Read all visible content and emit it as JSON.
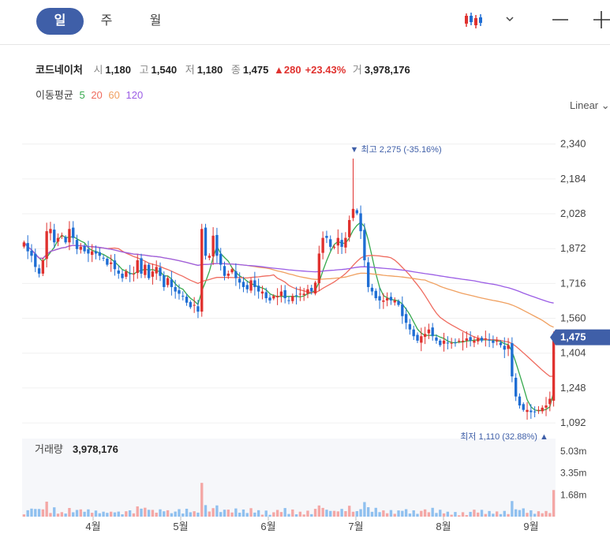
{
  "tabs": [
    {
      "label": "일",
      "active": true
    },
    {
      "label": "주",
      "active": false
    },
    {
      "label": "월",
      "active": false
    }
  ],
  "toolbar": {
    "chart_type_icon": "candlestick-icon",
    "dropdown_icon": "chevron-down-icon",
    "zoom_out_icon": "minus-icon",
    "zoom_in_icon": "plus-icon"
  },
  "stock": {
    "name": "코드네이처",
    "open_label": "시",
    "open": "1,180",
    "high_label": "고",
    "high": "1,540",
    "low_label": "저",
    "low": "1,180",
    "close_label": "종",
    "close": "1,475",
    "change": "280",
    "change_pct": "+23.43%",
    "volume_label": "거",
    "volume": "3,978,176"
  },
  "ma": {
    "label": "이동평균",
    "items": [
      {
        "period": "5",
        "color": "#36a94d"
      },
      {
        "period": "20",
        "color": "#ef6b5f"
      },
      {
        "period": "60",
        "color": "#f0a060"
      },
      {
        "period": "120",
        "color": "#9b5de5"
      }
    ]
  },
  "scale_label": "Linear",
  "colors": {
    "up": "#e0322f",
    "down": "#1f6ed4",
    "accent": "#3f5fa8",
    "vol_up": "#f4a7a5",
    "vol_down": "#8fc0ef"
  },
  "chart_data": [
    {
      "type": "candlestick",
      "y_ticks": [
        "2,340",
        "2,184",
        "2,028",
        "1,872",
        "1,716",
        "1,560",
        "1,404",
        "1,248",
        "1,092"
      ],
      "ylim": [
        1050,
        2420
      ],
      "x_ticks": [
        "4월",
        "5월",
        "6월",
        "7월",
        "8월",
        "9월"
      ],
      "current_price": "1,475",
      "high_marker": {
        "label": "최고",
        "value": "2,275",
        "pct": "(-35.16%)",
        "price": 2275
      },
      "low_marker": {
        "label": "최저",
        "value": "1,110",
        "pct": "(32.88%)",
        "price": 1110
      },
      "closes": [
        1900,
        1860,
        1840,
        1790,
        1760,
        1820,
        1950,
        1960,
        1900,
        1920,
        1930,
        1900,
        1960,
        1920,
        1870,
        1880,
        1860,
        1850,
        1860,
        1850,
        1840,
        1830,
        1800,
        1810,
        1780,
        1760,
        1740,
        1770,
        1760,
        1760,
        1820,
        1760,
        1800,
        1740,
        1770,
        1790,
        1750,
        1700,
        1740,
        1700,
        1680,
        1670,
        1660,
        1630,
        1610,
        1620,
        1590,
        1960,
        1840,
        1840,
        1930,
        1840,
        1800,
        1750,
        1760,
        1780,
        1740,
        1720,
        1700,
        1690,
        1730,
        1700,
        1680,
        1680,
        1650,
        1640,
        1660,
        1660,
        1680,
        1650,
        1640,
        1660,
        1660,
        1670,
        1670,
        1690,
        1680,
        1720,
        1850,
        1920,
        1920,
        1880,
        1880,
        1920,
        1880,
        1920,
        2000,
        2050,
        2030,
        1950,
        1820,
        1700,
        1680,
        1650,
        1640,
        1640,
        1650,
        1640,
        1640,
        1620,
        1570,
        1540,
        1510,
        1480,
        1460,
        1480,
        1490,
        1510,
        1480,
        1460,
        1440,
        1460,
        1450,
        1450,
        1450,
        1460,
        1460,
        1470,
        1460,
        1460,
        1470,
        1460,
        1470,
        1460,
        1450,
        1460,
        1440,
        1420,
        1440,
        1300,
        1210,
        1170,
        1150,
        1150,
        1140,
        1140,
        1150,
        1160,
        1170,
        1200,
        1475
      ],
      "volume_ticks": [
        "5.03m",
        "3.35m",
        "1.68m"
      ],
      "volume_max": 6000000,
      "volume_label": "거래량",
      "volume_value": "3,978,176"
    }
  ]
}
